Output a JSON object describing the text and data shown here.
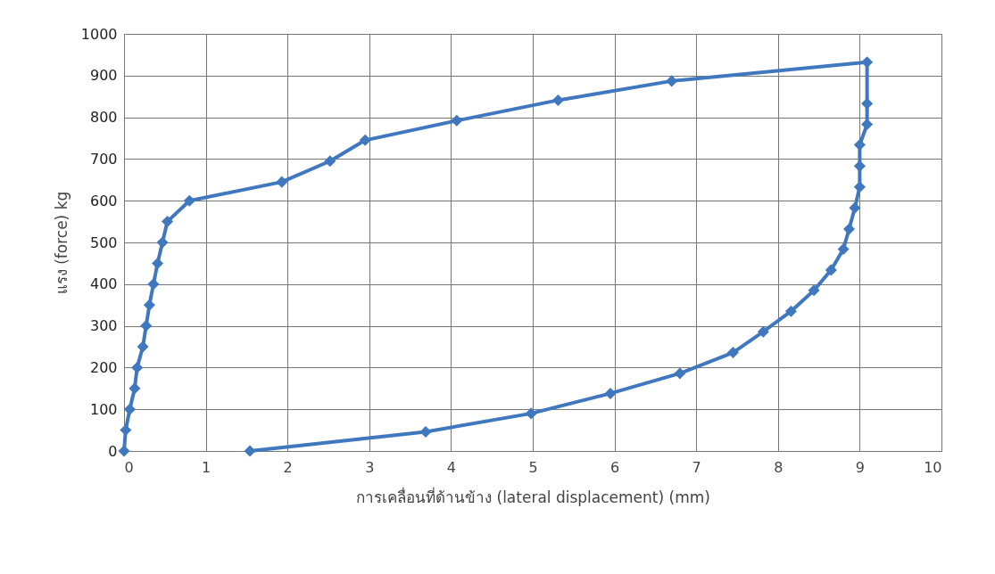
{
  "chart_data": {
    "type": "line",
    "xlabel": "การเคลื่อนที่ด้านข้าง (lateral displacement) (mm)",
    "ylabel": "แรง (force) kg",
    "xlim": [
      0,
      10
    ],
    "xticks": [
      0,
      1,
      2,
      3,
      4,
      5,
      6,
      7,
      8,
      9,
      10
    ],
    "ylim": [
      0,
      1000
    ],
    "yticks": [
      0,
      100,
      200,
      300,
      400,
      500,
      600,
      700,
      800,
      900,
      1000
    ],
    "grid": true,
    "marker": "diamond",
    "line_style": "solid",
    "legend": false,
    "series": [
      {
        "color": "#3f78bf",
        "x": [
          0,
          0.02,
          0.07,
          0.13,
          0.16,
          0.23,
          0.27,
          0.31,
          0.36,
          0.41,
          0.47,
          0.53,
          0.8,
          1.93,
          2.52,
          2.95,
          4.07,
          5.31,
          6.7,
          9.09,
          9.09,
          9.09,
          9.0,
          9.0,
          9.0,
          8.94,
          8.87,
          8.8,
          8.65,
          8.44,
          8.16,
          7.82,
          7.45,
          6.8,
          5.95,
          4.98,
          3.69,
          1.54
        ],
        "values": [
          0,
          50,
          100,
          150,
          200,
          250,
          300,
          350,
          400,
          450,
          500,
          550,
          600,
          645,
          695,
          745,
          792,
          841,
          887,
          932,
          833,
          783,
          734,
          683,
          633,
          583,
          532,
          484,
          434,
          385,
          335,
          286,
          236,
          186,
          138,
          90,
          46,
          0
        ]
      }
    ]
  }
}
